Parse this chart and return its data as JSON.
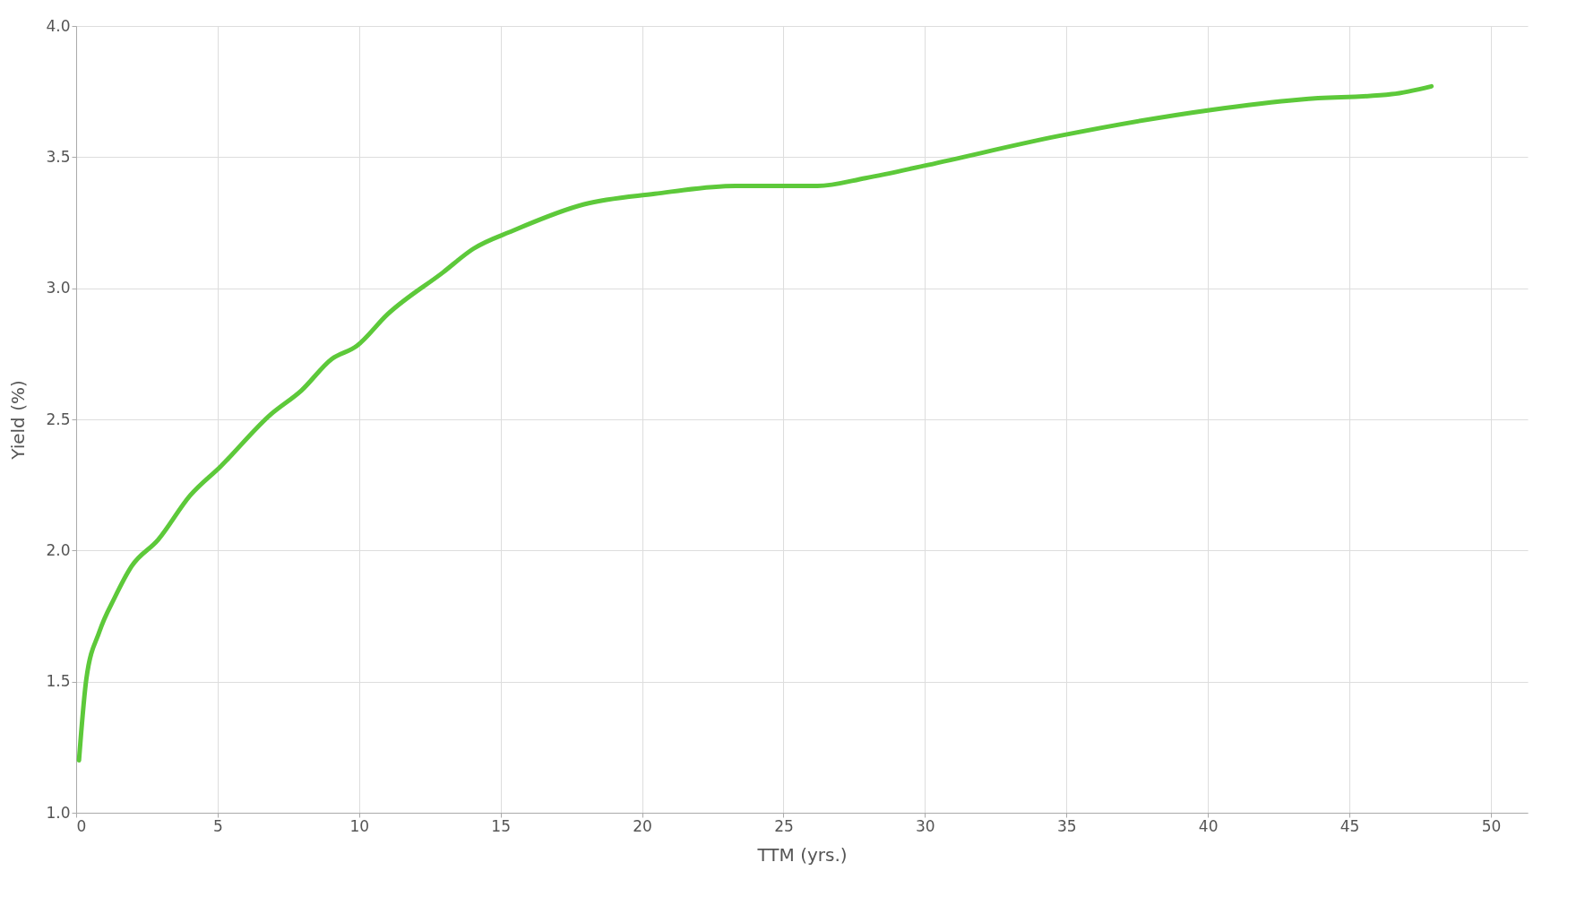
{
  "chart_data": {
    "type": "line",
    "xlabel": "TTM (yrs.)",
    "ylabel": "Yield (%)",
    "x": [
      0.1,
      0.36,
      0.82,
      1.36,
      1.96,
      2.89,
      4.03,
      5.1,
      6.89,
      7.96,
      9.03,
      9.92,
      11.0,
      12.96,
      14.03,
      15.45,
      17.95,
      20.45,
      23.3,
      26.2,
      27.9,
      30.1,
      34.7,
      40.1,
      43.3,
      46.5,
      47.9
    ],
    "series": [
      {
        "color": "#5dc93a",
        "values": [
          1.2,
          1.51,
          1.69,
          1.82,
          1.94,
          2.04,
          2.21,
          2.32,
          2.52,
          2.61,
          2.73,
          2.78,
          2.9,
          3.06,
          3.15,
          3.22,
          3.32,
          3.36,
          3.39,
          3.39,
          3.42,
          3.47,
          3.58,
          3.68,
          3.72,
          3.74,
          3.77
        ]
      }
    ],
    "xlim": [
      0,
      51.3
    ],
    "xticks": [
      0,
      5,
      10,
      15,
      20,
      25,
      30,
      35,
      40,
      45,
      50
    ],
    "ylim": [
      1.0,
      4.0
    ],
    "yticks": [
      {
        "value": 1,
        "label": "1.0"
      },
      {
        "value": 1.5,
        "label": "1.5"
      },
      {
        "value": 2,
        "label": "2.0"
      },
      {
        "value": 2.5,
        "label": "2.5"
      },
      {
        "value": 3,
        "label": "3.0"
      },
      {
        "value": 3.5,
        "label": "3.5"
      },
      {
        "value": 4,
        "label": "4.0"
      }
    ],
    "grid": true,
    "marker": "none",
    "line_style": "solid"
  }
}
